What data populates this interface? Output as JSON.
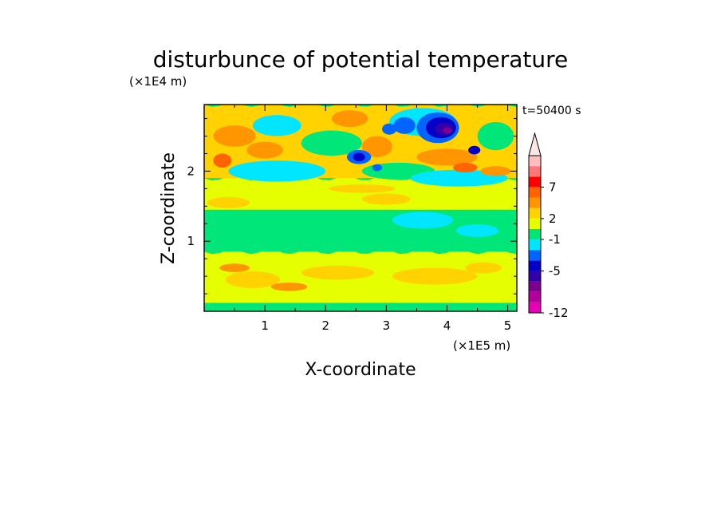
{
  "chart_data": {
    "type": "heatmap",
    "title": "disturbunce of potential temperature",
    "xlabel": "X-coordinate",
    "ylabel": "Z-coordinate",
    "x_unit": "(×1E5 m)",
    "y_unit": "(×1E4 m)",
    "annotation": "t=50400 s",
    "xlim": [
      0,
      5.15
    ],
    "ylim": [
      0,
      2.95
    ],
    "x_ticks": [
      "1",
      "2",
      "3",
      "4",
      "5"
    ],
    "y_ticks": [
      "1",
      "2"
    ],
    "colorbar": {
      "levels": [
        {
          "color": "#e600b4"
        },
        {
          "color": "#b4009b"
        },
        {
          "color": "#7d008c"
        },
        {
          "color": "#3200aa"
        },
        {
          "color": "#0000c8"
        },
        {
          "color": "#0064ff"
        },
        {
          "color": "#00e6ff"
        },
        {
          "color": "#00e678"
        },
        {
          "color": "#e6ff00"
        },
        {
          "color": "#ffd200"
        },
        {
          "color": "#ff9600"
        },
        {
          "color": "#ff6400"
        },
        {
          "color": "#ff0000"
        },
        {
          "color": "#ff7878"
        },
        {
          "color": "#ffbebe"
        }
      ],
      "labels": [
        {
          "text": "-12",
          "level_index": 0
        },
        {
          "text": "-5",
          "level_index": 4
        },
        {
          "text": "-1",
          "level_index": 7
        },
        {
          "text": "2",
          "level_index": 9
        },
        {
          "text": "7",
          "level_index": 12
        }
      ],
      "extend_max": true,
      "extend_color": "#ffe6e6"
    },
    "background_color": "#00e678",
    "bands": [
      {
        "name": "lower-yellow-layer",
        "y": [
          0.12,
          0.85
        ],
        "color": "#e6ff00"
      },
      {
        "name": "green-mid-layer",
        "y": [
          0.85,
          1.45
        ],
        "color": "#00e678"
      },
      {
        "name": "upper-yellow-layer",
        "y": [
          1.45,
          1.9
        ],
        "color": "#e6ff00"
      },
      {
        "name": "upper-wave-layer",
        "y": [
          1.9,
          2.95
        ],
        "color": "#ffd200"
      }
    ],
    "features": [
      {
        "x": 0.8,
        "y": 0.45,
        "rx": 0.45,
        "ry": 0.12,
        "color": "#ffd200"
      },
      {
        "x": 2.2,
        "y": 0.55,
        "rx": 0.6,
        "ry": 0.1,
        "color": "#ffd200"
      },
      {
        "x": 3.8,
        "y": 0.5,
        "rx": 0.7,
        "ry": 0.12,
        "color": "#ffd200"
      },
      {
        "x": 4.6,
        "y": 0.62,
        "rx": 0.3,
        "ry": 0.08,
        "color": "#ffd200"
      },
      {
        "x": 1.4,
        "y": 0.35,
        "rx": 0.3,
        "ry": 0.06,
        "color": "#ff9600"
      },
      {
        "x": 0.5,
        "y": 0.62,
        "rx": 0.25,
        "ry": 0.06,
        "color": "#ff9600"
      },
      {
        "x": 3.6,
        "y": 1.3,
        "rx": 0.5,
        "ry": 0.12,
        "color": "#00e6ff"
      },
      {
        "x": 4.5,
        "y": 1.15,
        "rx": 0.35,
        "ry": 0.09,
        "color": "#00e6ff"
      },
      {
        "x": 0.4,
        "y": 1.55,
        "rx": 0.35,
        "ry": 0.08,
        "color": "#ffd200"
      },
      {
        "x": 3.0,
        "y": 1.6,
        "rx": 0.4,
        "ry": 0.08,
        "color": "#ffd200"
      },
      {
        "x": 2.6,
        "y": 1.75,
        "rx": 0.55,
        "ry": 0.06,
        "color": "#ffd200"
      },
      {
        "x": 1.2,
        "y": 2.0,
        "rx": 0.8,
        "ry": 0.15,
        "color": "#00e6ff"
      },
      {
        "x": 3.2,
        "y": 2.0,
        "rx": 0.6,
        "ry": 0.12,
        "color": "#00e678"
      },
      {
        "x": 4.2,
        "y": 1.9,
        "rx": 0.8,
        "ry": 0.12,
        "color": "#00e6ff"
      },
      {
        "x": 2.1,
        "y": 2.4,
        "rx": 0.5,
        "ry": 0.18,
        "color": "#00e678"
      },
      {
        "x": 1.2,
        "y": 2.65,
        "rx": 0.4,
        "ry": 0.15,
        "color": "#00e6ff"
      },
      {
        "x": 0.5,
        "y": 2.5,
        "rx": 0.35,
        "ry": 0.15,
        "color": "#ff9600"
      },
      {
        "x": 1.0,
        "y": 2.3,
        "rx": 0.3,
        "ry": 0.12,
        "color": "#ff9600"
      },
      {
        "x": 0.3,
        "y": 2.15,
        "rx": 0.15,
        "ry": 0.1,
        "color": "#ff6400"
      },
      {
        "x": 2.4,
        "y": 2.75,
        "rx": 0.3,
        "ry": 0.12,
        "color": "#ff9600"
      },
      {
        "x": 2.85,
        "y": 2.35,
        "rx": 0.25,
        "ry": 0.15,
        "color": "#ff9600"
      },
      {
        "x": 4.0,
        "y": 2.2,
        "rx": 0.5,
        "ry": 0.12,
        "color": "#ff9600"
      },
      {
        "x": 4.3,
        "y": 2.05,
        "rx": 0.2,
        "ry": 0.07,
        "color": "#ff6400"
      },
      {
        "x": 4.8,
        "y": 2.5,
        "rx": 0.3,
        "ry": 0.2,
        "color": "#00e678"
      },
      {
        "x": 3.6,
        "y": 2.7,
        "rx": 0.55,
        "ry": 0.2,
        "color": "#00e6ff"
      },
      {
        "x": 3.3,
        "y": 2.65,
        "rx": 0.18,
        "ry": 0.12,
        "color": "#0064ff"
      },
      {
        "x": 3.85,
        "y": 2.62,
        "rx": 0.35,
        "ry": 0.22,
        "color": "#0064ff"
      },
      {
        "x": 3.9,
        "y": 2.62,
        "rx": 0.25,
        "ry": 0.15,
        "color": "#0000c8"
      },
      {
        "x": 3.95,
        "y": 2.6,
        "rx": 0.15,
        "ry": 0.09,
        "color": "#3200aa"
      },
      {
        "x": 4.0,
        "y": 2.58,
        "rx": 0.07,
        "ry": 0.05,
        "color": "#7d008c"
      },
      {
        "x": 2.55,
        "y": 2.2,
        "rx": 0.2,
        "ry": 0.1,
        "color": "#0064ff"
      },
      {
        "x": 2.55,
        "y": 2.2,
        "rx": 0.1,
        "ry": 0.06,
        "color": "#0000c8"
      },
      {
        "x": 3.05,
        "y": 2.6,
        "rx": 0.12,
        "ry": 0.08,
        "color": "#0064ff"
      },
      {
        "x": 4.45,
        "y": 2.3,
        "rx": 0.1,
        "ry": 0.06,
        "color": "#0000c8"
      },
      {
        "x": 2.85,
        "y": 2.05,
        "rx": 0.08,
        "ry": 0.05,
        "color": "#0064ff"
      },
      {
        "x": 4.8,
        "y": 2.0,
        "rx": 0.25,
        "ry": 0.07,
        "color": "#ff9600"
      }
    ]
  }
}
